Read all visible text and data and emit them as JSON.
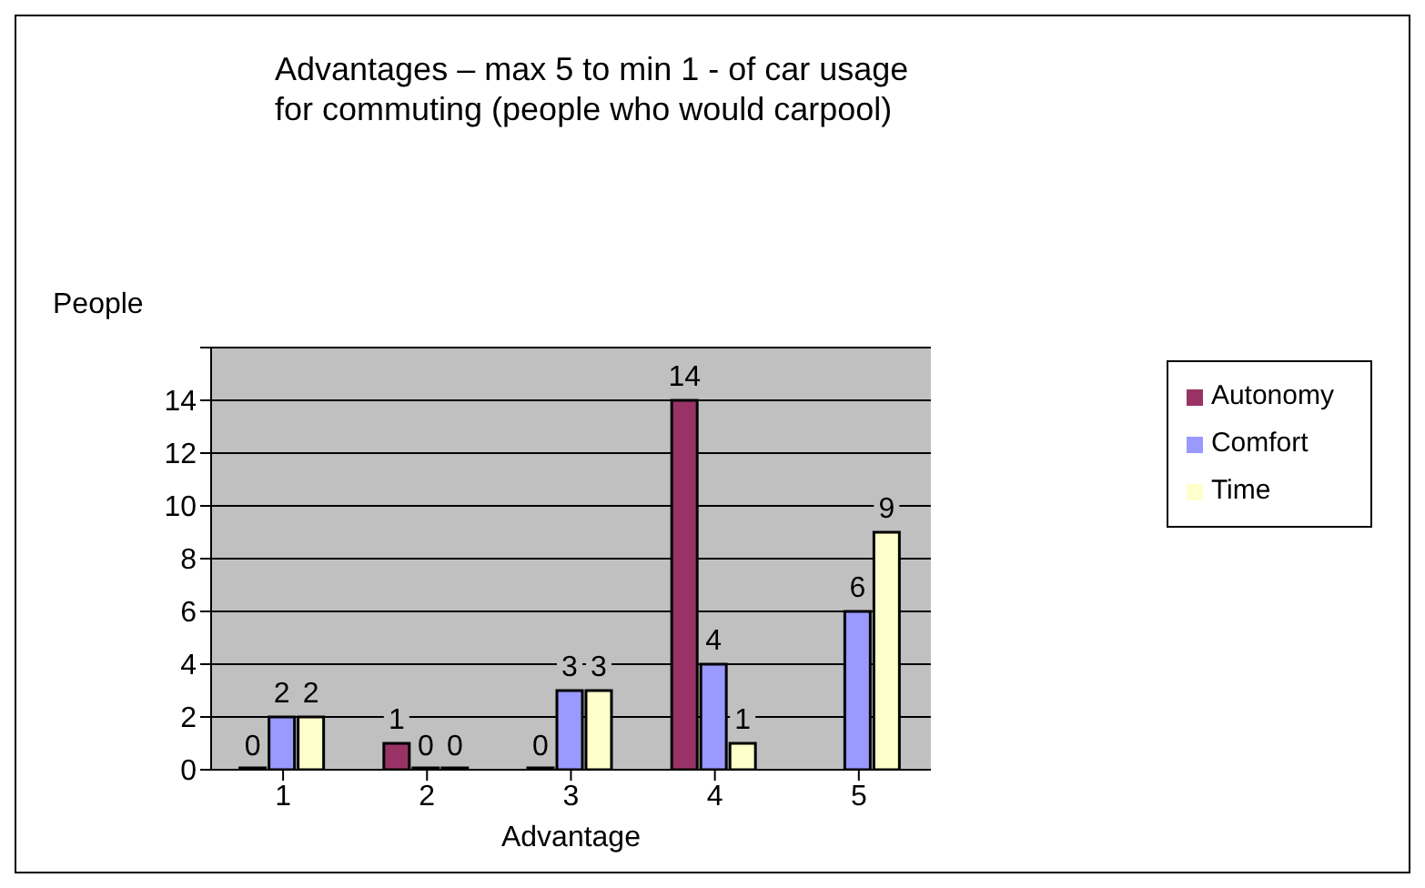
{
  "chart_data": {
    "type": "bar",
    "title": "Advantages – max 5 to min 1 - of car usage\nfor commuting (people who would carpool)",
    "xlabel": "Advantage",
    "ylabel": "People",
    "categories": [
      "1",
      "2",
      "3",
      "4",
      "5"
    ],
    "series": [
      {
        "name": "Autonomy",
        "color": "#993366",
        "values": [
          0,
          1,
          0,
          14,
          null
        ],
        "value_labels": [
          "0",
          "1",
          "0",
          "14",
          null
        ]
      },
      {
        "name": "Comfort",
        "color": "#9999ff",
        "values": [
          2,
          0,
          3,
          4,
          6
        ],
        "value_labels": [
          "2",
          "0",
          "3",
          "4",
          "6"
        ]
      },
      {
        "name": "Time",
        "color": "#ffffcc",
        "values": [
          2,
          0,
          3,
          1,
          9
        ],
        "value_labels": [
          "2",
          "0",
          "3",
          "1",
          "9"
        ]
      }
    ],
    "ylim": [
      0,
      16
    ],
    "yticks": [
      0,
      2,
      4,
      6,
      8,
      10,
      12,
      14,
      {
        "value": 16,
        "label": null
      }
    ],
    "grid": "y",
    "legend": "right"
  }
}
